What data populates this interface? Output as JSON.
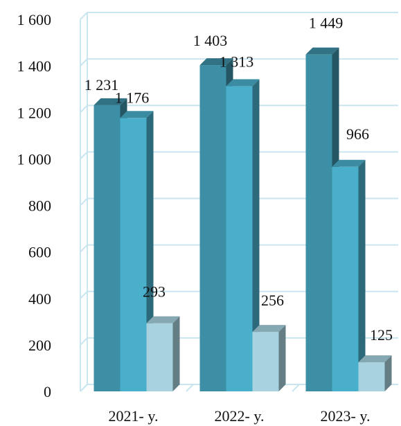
{
  "chart_data": {
    "type": "bar",
    "title": "",
    "xlabel": "",
    "ylabel": "",
    "ylim": [
      0,
      1600
    ],
    "y_ticks": [
      0,
      200,
      400,
      600,
      800,
      1000,
      1200,
      1400,
      1600
    ],
    "y_tick_labels": [
      "0",
      "200",
      "400",
      "600",
      "800",
      "1 000",
      "1 200",
      "1 400",
      "1 600"
    ],
    "categories": [
      "2021- y.",
      "2022- y.",
      "2023- y."
    ],
    "series": [
      {
        "values": [
          1231,
          1403,
          1449
        ],
        "labels": [
          "1 231",
          "1 403",
          "1 449"
        ],
        "color": "#3d8fa6"
      },
      {
        "values": [
          1176,
          1313,
          966
        ],
        "labels": [
          "1 176",
          "1 313",
          "966"
        ],
        "color": "#4aafcb"
      },
      {
        "values": [
          293,
          256,
          125
        ],
        "labels": [
          "293",
          "256",
          "125"
        ],
        "color": "#a8d2e0"
      }
    ],
    "grid": true,
    "style": "3d-clustered-columns",
    "legend": "none"
  }
}
